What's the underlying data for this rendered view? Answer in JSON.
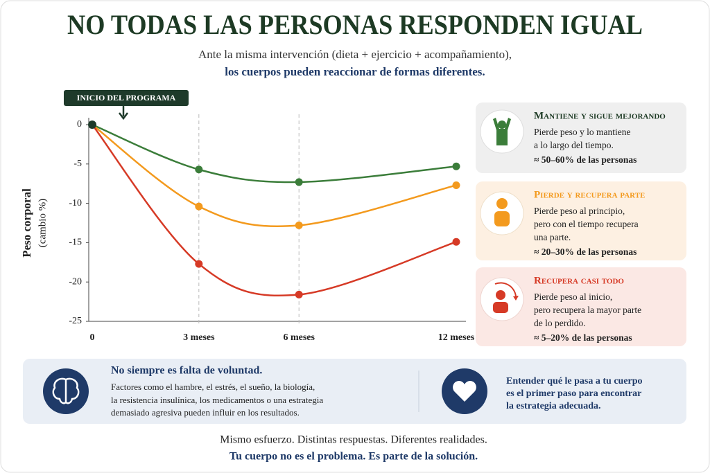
{
  "chart_data": {
    "type": "line",
    "title": "NO TODAS LAS PERSONAS RESPONDEN IGUAL",
    "subtitle": [
      "Ante la misma intervención (dieta + ejercicio + acompañamiento),",
      "los cuerpos pueden reaccionar de formas diferentes."
    ],
    "y_label": [
      "Peso corporal",
      "(cambio %)"
    ],
    "annotation": "INICIO DEL PROGRAMA",
    "categories": [
      "0",
      "3 meses",
      "6 meses",
      "12 meses"
    ],
    "ylim": [
      -25,
      0
    ],
    "yticks": [
      0,
      -5,
      -10,
      -15,
      -20,
      -25
    ],
    "series": [
      {
        "name": "Mantiene y sigue mejorando",
        "color": "#3b7d3a",
        "values": [
          0,
          -5.7,
          -7.3,
          -5.3
        ]
      },
      {
        "name": "Pierde y recupera parte",
        "color": "#f39a1e",
        "values": [
          0,
          -10.4,
          -12.8,
          -7.7
        ]
      },
      {
        "name": "Recupera casi todo",
        "color": "#d63a26",
        "values": [
          0,
          -17.7,
          -21.6,
          -14.9
        ]
      }
    ]
  },
  "cards": [
    {
      "description": [
        "Pierde peso y lo mantiene",
        "a lo largo del tiempo."
      ],
      "share": "≈ 50–60% de las personas"
    },
    {
      "description": [
        "Pierde peso al principio,",
        "pero con el tiempo recupera",
        "una parte."
      ],
      "share": "≈ 20–30% de las personas"
    },
    {
      "description": [
        "Pierde peso al inicio,",
        "pero recupera la mayor parte",
        "de lo perdido."
      ],
      "share": "≈ 5–20% de las personas"
    }
  ],
  "info": {
    "heading": "No siempre es falta de voluntad.",
    "body": [
      "Factores como el hambre, el estrés, el sueño, la biología,",
      "la resistencia insulínica, los medicamentos o una estrategia",
      "demasiado agresiva pueden influir en los resultados."
    ],
    "side": [
      "Entender qué le pasa a tu cuerpo",
      "es el primer paso para encontrar",
      "la estrategia adecuada."
    ]
  },
  "footer": [
    "Mismo esfuerzo. Distintas respuestas. Diferentes realidades.",
    "Tu cuerpo no es el problema. Es parte de la solución."
  ]
}
